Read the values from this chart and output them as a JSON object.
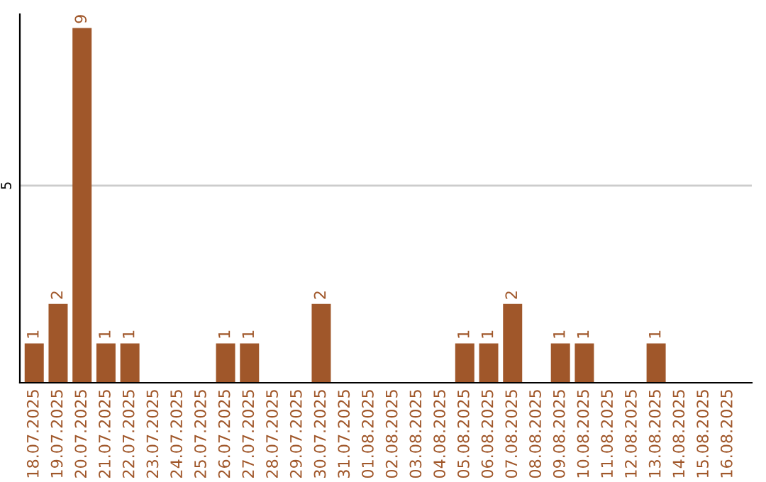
{
  "chart_data": {
    "type": "bar",
    "categories": [
      "18.07.2025",
      "19.07.2025",
      "20.07.2025",
      "21.07.2025",
      "22.07.2025",
      "23.07.2025",
      "24.07.2025",
      "25.07.2025",
      "26.07.2025",
      "27.07.2025",
      "28.07.2025",
      "29.07.2025",
      "30.07.2025",
      "31.07.2025",
      "01.08.2025",
      "02.08.2025",
      "03.08.2025",
      "04.08.2025",
      "05.08.2025",
      "06.08.2025",
      "07.08.2025",
      "08.08.2025",
      "09.08.2025",
      "10.08.2025",
      "11.08.2025",
      "12.08.2025",
      "13.08.2025",
      "14.08.2025",
      "15.08.2025",
      "16.08.2025"
    ],
    "values": [
      1,
      2,
      9,
      1,
      1,
      0,
      0,
      0,
      1,
      1,
      0,
      0,
      2,
      0,
      0,
      0,
      0,
      0,
      1,
      1,
      2,
      0,
      1,
      1,
      0,
      0,
      1,
      0,
      0,
      0
    ],
    "value_labels": [
      "1",
      "2",
      "9",
      "1",
      "1",
      null,
      null,
      null,
      "1",
      "1",
      null,
      null,
      "2",
      null,
      null,
      null,
      null,
      null,
      "1",
      "1",
      "2",
      null,
      "1",
      "1",
      null,
      null,
      "1",
      null,
      null,
      null
    ],
    "color": "#a0572a",
    "ylim": [
      0,
      9.35
    ],
    "yticks": [
      5
    ],
    "grid": "y",
    "legend": false
  }
}
